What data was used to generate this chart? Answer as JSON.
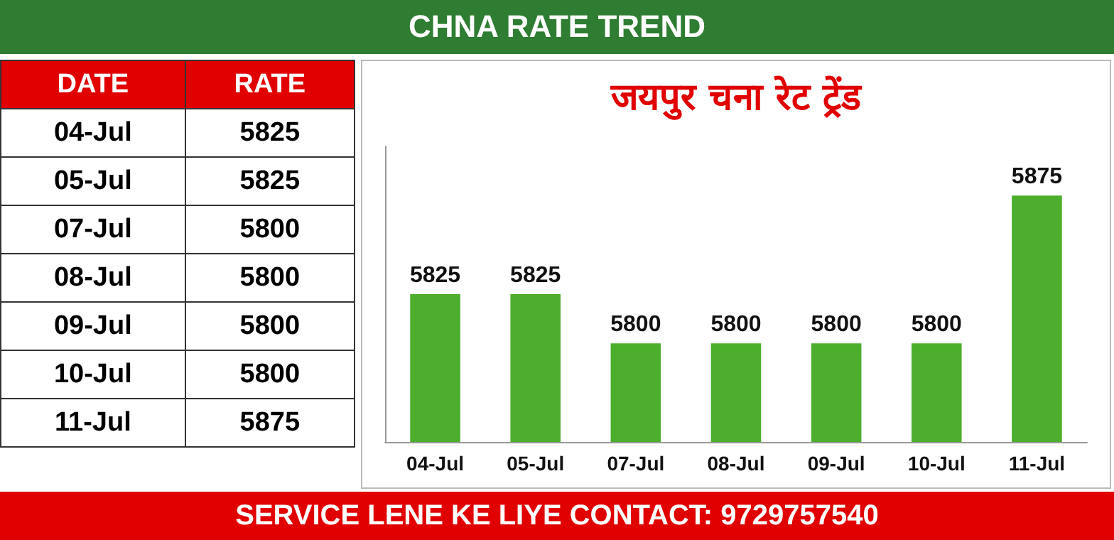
{
  "chart_data": [
    {
      "type": "other",
      "annotations": [
        "DATE",
        "RATE"
      ],
      "categories": [
        "04-Jul",
        "05-Jul",
        "07-Jul",
        "08-Jul",
        "09-Jul",
        "10-Jul",
        "11-Jul"
      ],
      "values": [
        5825,
        5825,
        5800,
        5800,
        5800,
        5800,
        5875
      ],
      "data_labels": true
    },
    {
      "type": "bar",
      "title": "CHNA RATE TREND",
      "subtitle": "जयपुर चना रेट ट्रेंड",
      "categories": [
        "04-Jul",
        "05-Jul",
        "07-Jul",
        "08-Jul",
        "09-Jul",
        "10-Jul",
        "11-Jul"
      ],
      "values": [
        5825,
        5825,
        5800,
        5800,
        5800,
        5800,
        5875
      ],
      "color": "#4cae2c",
      "ylim": [
        5750,
        5900
      ],
      "tick_labels": "x",
      "data_labels": true,
      "annotations": [
        "SERVICE LENE KE LIYE CONTACT: 9729757540"
      ]
    }
  ]
}
